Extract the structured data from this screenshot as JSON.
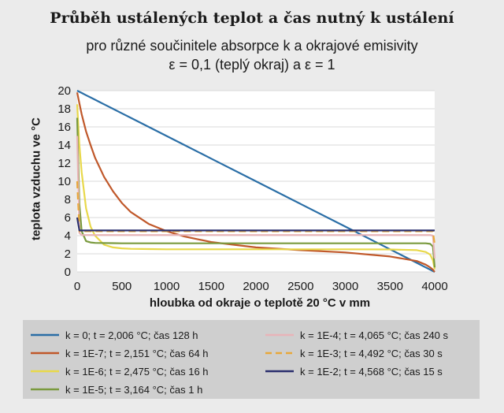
{
  "header": {
    "title": "Průběh ustálených teplot a čas nutný k ustálení",
    "subtitle_line1": "pro různé součinitele absorpce k a okrajové emisivity",
    "subtitle_line2": "ε = 0,1 (teplý okraj) a ε = 1"
  },
  "chart_data": {
    "type": "line",
    "xlabel": "hloubka od okraje o teplotě 20 °C v mm",
    "ylabel": "teplota vzduchu ve °C",
    "xlim": [
      0,
      4000
    ],
    "ylim": [
      0,
      20
    ],
    "xticks": [
      0,
      500,
      1000,
      1500,
      2000,
      2500,
      3000,
      3500,
      4000
    ],
    "yticks": [
      0,
      2,
      4,
      6,
      8,
      10,
      12,
      14,
      16,
      18,
      20
    ],
    "grid": "horizontal",
    "legend_position": "bottom",
    "x": [
      0,
      25,
      50,
      100,
      150,
      200,
      300,
      400,
      500,
      600,
      800,
      1000,
      1200,
      1500,
      2000,
      2500,
      3000,
      3500,
      3800,
      3900,
      3950,
      3980,
      4000
    ],
    "series": [
      {
        "name": "k = 0; t = 2,006 °C; čas 128 h",
        "color": "#2a6ea6",
        "dash": "solid",
        "values": [
          20,
          19.87,
          19.75,
          19.5,
          19.25,
          19.0,
          18.5,
          18.0,
          17.5,
          17.0,
          16.0,
          15.0,
          14.0,
          12.5,
          10.0,
          7.5,
          5.0,
          2.5,
          1.0,
          0.5,
          0.25,
          0.1,
          0.0
        ]
      },
      {
        "name": "k = 1E-7; t = 2,151 °C; čas 64 h",
        "color": "#c0582a",
        "dash": "solid",
        "values": [
          19.8,
          18.6,
          17.4,
          15.5,
          14.0,
          12.6,
          10.5,
          8.9,
          7.6,
          6.6,
          5.3,
          4.5,
          3.9,
          3.3,
          2.7,
          2.4,
          2.15,
          1.7,
          1.2,
          0.8,
          0.5,
          0.25,
          0.0
        ]
      },
      {
        "name": "k = 1E-6; t = 2,475 °C; čas 16 h",
        "color": "#e8d84a",
        "dash": "solid",
        "values": [
          18.5,
          14.0,
          11.0,
          7.0,
          5.0,
          4.0,
          3.0,
          2.7,
          2.6,
          2.55,
          2.52,
          2.5,
          2.5,
          2.5,
          2.5,
          2.5,
          2.5,
          2.48,
          2.4,
          2.2,
          1.9,
          1.3,
          0.3
        ]
      },
      {
        "name": "k = 1E-5; t = 3,164 °C; čas 1 h",
        "color": "#7a9a3e",
        "dash": "solid",
        "values": [
          17.0,
          7.5,
          4.5,
          3.4,
          3.25,
          3.2,
          3.18,
          3.17,
          3.16,
          3.16,
          3.16,
          3.16,
          3.16,
          3.16,
          3.16,
          3.16,
          3.16,
          3.16,
          3.16,
          3.16,
          3.1,
          2.8,
          0.5
        ]
      },
      {
        "name": "k = 1E-4; t = 4,065 °C; čas 240 s",
        "color": "#e8b4b8",
        "dash": "solid",
        "values": [
          15.0,
          4.3,
          4.07,
          4.07,
          4.07,
          4.07,
          4.07,
          4.07,
          4.07,
          4.07,
          4.07,
          4.07,
          4.07,
          4.07,
          4.07,
          4.07,
          4.07,
          4.07,
          4.07,
          4.07,
          4.07,
          4.0,
          1.5
        ]
      },
      {
        "name": "k = 1E-3; t = 4,492 °C; čas 30 s",
        "color": "#e8a83a",
        "dash": "dashed",
        "values": [
          10.0,
          4.49,
          4.49,
          4.49,
          4.49,
          4.49,
          4.49,
          4.49,
          4.49,
          4.49,
          4.49,
          4.49,
          4.49,
          4.49,
          4.49,
          4.49,
          4.49,
          4.49,
          4.49,
          4.49,
          4.49,
          4.49,
          3.0
        ]
      },
      {
        "name": "k = 1E-2; t = 4,568 °C; čas 15 s",
        "color": "#2a2f6e",
        "dash": "solid",
        "values": [
          6.0,
          4.57,
          4.57,
          4.57,
          4.57,
          4.57,
          4.57,
          4.57,
          4.57,
          4.57,
          4.57,
          4.57,
          4.57,
          4.57,
          4.57,
          4.57,
          4.57,
          4.57,
          4.57,
          4.57,
          4.57,
          4.57,
          4.57
        ]
      }
    ]
  }
}
